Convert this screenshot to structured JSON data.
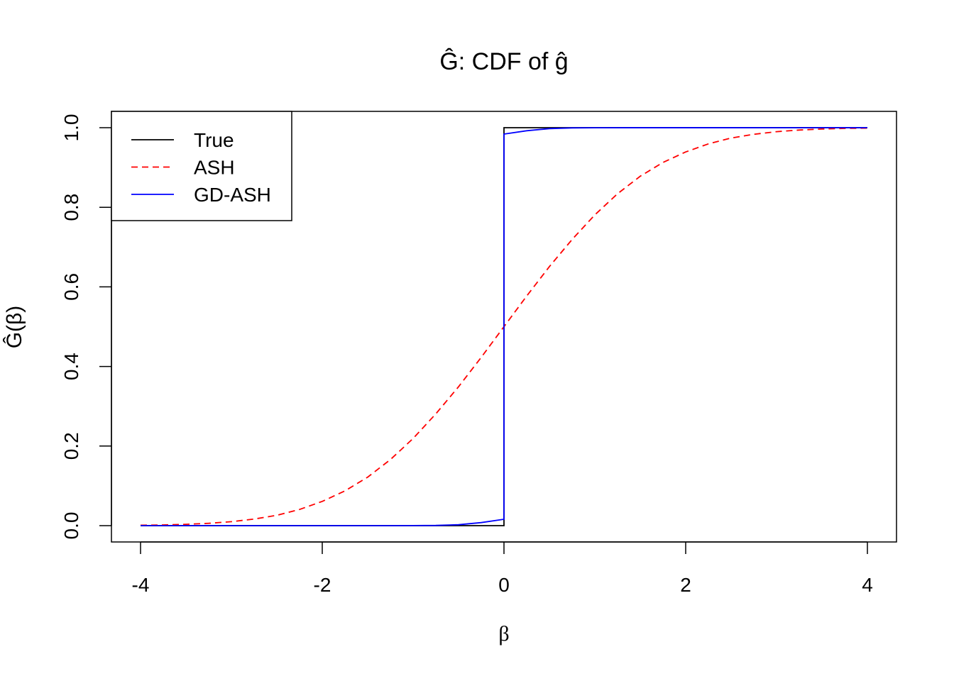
{
  "chart_data": {
    "type": "line",
    "title": "Ĝ: CDF of ĝ",
    "xlabel": "β",
    "ylabel": "Ĝ(β)",
    "xlim": [
      -4,
      4
    ],
    "ylim": [
      0,
      1
    ],
    "xticks": [
      "-4",
      "-2",
      "0",
      "2",
      "4"
    ],
    "yticks": [
      "0.0",
      "0.2",
      "0.4",
      "0.6",
      "0.8",
      "1.0"
    ],
    "grid": false,
    "legend_position": "top-left",
    "series": [
      {
        "name": "True",
        "color": "#000000",
        "dash": "solid",
        "x": [
          -4,
          0,
          0,
          4
        ],
        "y": [
          0,
          0,
          1,
          1
        ]
      },
      {
        "name": "ASH",
        "color": "#ff0000",
        "dash": "dashed",
        "x": [
          -4,
          -3.75,
          -3.5,
          -3.25,
          -3,
          -2.75,
          -2.5,
          -2.25,
          -2,
          -1.75,
          -1.5,
          -1.25,
          -1,
          -0.75,
          -0.5,
          -0.25,
          0,
          0.25,
          0.5,
          0.75,
          1,
          1.25,
          1.5,
          1.75,
          2,
          2.25,
          2.5,
          2.75,
          3,
          3.25,
          3.5,
          3.75,
          4
        ],
        "y": [
          0.001,
          0.0018,
          0.0033,
          0.0059,
          0.01,
          0.0165,
          0.026,
          0.0406,
          0.061,
          0.0874,
          0.122,
          0.166,
          0.219,
          0.281,
          0.349,
          0.423,
          0.5,
          0.577,
          0.651,
          0.719,
          0.781,
          0.834,
          0.878,
          0.9126,
          0.939,
          0.9594,
          0.974,
          0.9835,
          0.99,
          0.9941,
          0.9967,
          0.9982,
          0.999
        ]
      },
      {
        "name": "GD-ASH",
        "color": "#0000ff",
        "dash": "solid",
        "x": [
          -4,
          -1.25,
          -1,
          -0.75,
          -0.5,
          -0.25,
          0,
          0,
          0.25,
          0.5,
          0.75,
          1,
          4
        ],
        "y": [
          0,
          0,
          0.0001,
          0.0005,
          0.0024,
          0.0076,
          0.016,
          0.984,
          0.9924,
          0.9976,
          0.9995,
          0.9999,
          1
        ]
      }
    ]
  }
}
